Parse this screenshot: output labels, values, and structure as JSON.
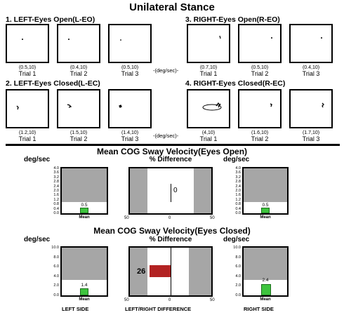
{
  "title": "Unilateral Stance",
  "units_mid": "-(deg/sec)-",
  "sections": {
    "left_eo": {
      "label": "1. LEFT-Eyes Open(L-EO)",
      "trials": [
        {
          "value": "(0.5,10)",
          "label": "Trial 1"
        },
        {
          "value": "(0.4,10)",
          "label": "Trial 2"
        },
        {
          "value": "(0.5,10)",
          "label": "Trial 3"
        }
      ]
    },
    "right_eo": {
      "label": "3. RIGHT-Eyes Open(R-EO)",
      "trials": [
        {
          "value": "(0.7,10)",
          "label": "Trial 1"
        },
        {
          "value": "(0.5,10)",
          "label": "Trial 2"
        },
        {
          "value": "(0.4,10)",
          "label": "Trial 3"
        }
      ]
    },
    "left_ec": {
      "label": "2. LEFT-Eyes Closed(L-EC)",
      "trials": [
        {
          "value": "(1.2,10)",
          "label": "Trial 1"
        },
        {
          "value": "(1.5,10)",
          "label": "Trial 2"
        },
        {
          "value": "(1.4,10)",
          "label": "Trial 3"
        }
      ]
    },
    "right_ec": {
      "label": "4. RIGHT-Eyes Closed(R-EC)",
      "trials": [
        {
          "value": "(4,10)",
          "label": "Trial 1"
        },
        {
          "value": "(1.6,10)",
          "label": "Trial 2"
        },
        {
          "value": "(1.7,10)",
          "label": "Trial 3"
        }
      ]
    }
  },
  "eyes_open": {
    "title": "Mean COG Sway Velocity(Eyes Open)",
    "unit": "deg/sec",
    "pct_title": "% Difference",
    "yticks": [
      "4.0",
      "3.6",
      "3.2",
      "2.8",
      "2.4",
      "2.0",
      "1.6",
      "1.2",
      "0.8",
      "0.4",
      "0.0"
    ],
    "left_mean": "0.5",
    "right_mean": "0.5",
    "mean_label": "Mean",
    "pct_value": "0",
    "pct_axis": [
      "50",
      "0",
      "50"
    ]
  },
  "eyes_closed": {
    "title": "Mean COG Sway Velocity(Eyes Closed)",
    "unit": "deg/sec",
    "pct_title": "% Difference",
    "yticks": [
      "10.0",
      "8.0",
      "6.0",
      "4.0",
      "2.0",
      "0.0"
    ],
    "left_mean": "1.4",
    "right_mean": "2.4",
    "mean_label": "Mean",
    "pct_value": "26",
    "pct_axis": [
      "50",
      "0",
      "50"
    ]
  },
  "footer": {
    "left": "LEFT SIDE",
    "middle": "LEFT/RIGHT DIFFERENCE",
    "right": "RIGHT SIDE"
  },
  "chart_data": [
    {
      "type": "bar",
      "title": "Mean COG Sway Velocity(Eyes Open)",
      "ylabel": "deg/sec",
      "categories": [
        "Mean"
      ],
      "series": [
        {
          "name": "LEFT SIDE",
          "values": [
            0.5
          ]
        },
        {
          "name": "RIGHT SIDE",
          "values": [
            0.5
          ]
        }
      ],
      "ylim": [
        0,
        4.0
      ]
    },
    {
      "type": "bar",
      "title": "% Difference",
      "categories": [
        "LEFT/RIGHT DIFFERENCE"
      ],
      "values": [
        0
      ],
      "xlim": [
        -50,
        50
      ]
    },
    {
      "type": "bar",
      "title": "Mean COG Sway Velocity(Eyes Closed)",
      "ylabel": "deg/sec",
      "categories": [
        "Mean"
      ],
      "series": [
        {
          "name": "LEFT SIDE",
          "values": [
            1.4
          ]
        },
        {
          "name": "RIGHT SIDE",
          "values": [
            2.4
          ]
        }
      ],
      "ylim": [
        0,
        10.0
      ]
    },
    {
      "type": "bar",
      "title": "% Difference",
      "categories": [
        "LEFT/RIGHT DIFFERENCE"
      ],
      "values": [
        -26
      ],
      "xlim": [
        -50,
        50
      ]
    }
  ]
}
